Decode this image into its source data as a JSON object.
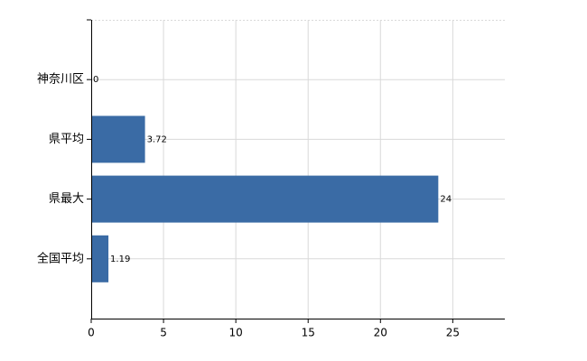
{
  "chart_data": {
    "type": "hbar",
    "categories": [
      "神奈川区",
      "県平均",
      "県最大",
      "全国平均"
    ],
    "values": [
      0,
      3.72,
      24,
      1.19
    ],
    "color": "#3a6ba5",
    "xlim": [
      0,
      28.6
    ],
    "xticks": [
      0,
      5,
      10,
      15,
      20,
      25
    ],
    "grid": true
  }
}
